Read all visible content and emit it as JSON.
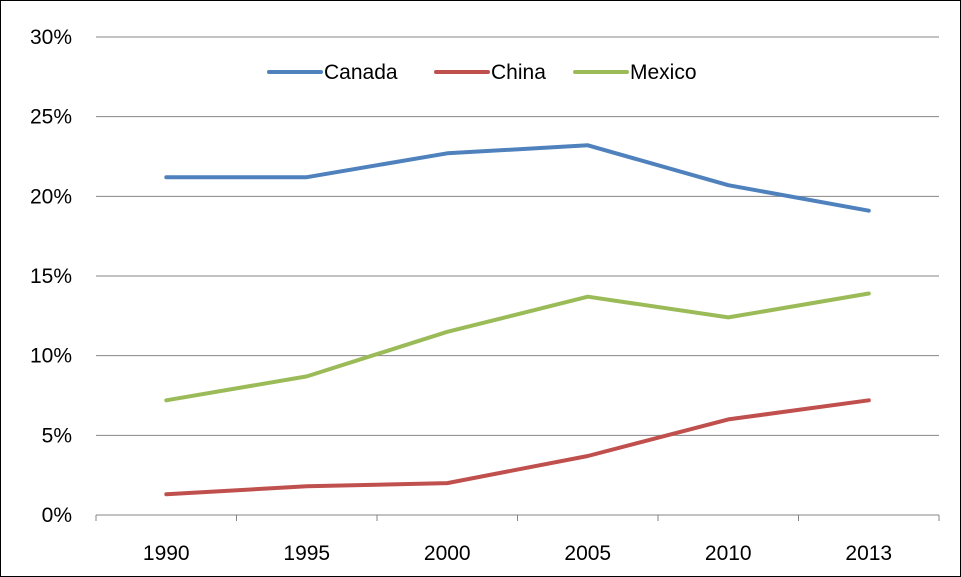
{
  "chart_data": {
    "type": "line",
    "title": "",
    "xlabel": "",
    "ylabel": "",
    "categories": [
      "1990",
      "1995",
      "2000",
      "2005",
      "2010",
      "2013"
    ],
    "y_ticks": [
      "0%",
      "5%",
      "10%",
      "15%",
      "20%",
      "25%",
      "30%"
    ],
    "ylim": [
      0,
      30
    ],
    "y_unit": "%",
    "grid": "horizontal",
    "legend_position": "top-center",
    "series": [
      {
        "name": "Canada",
        "color": "#4f81bd",
        "values": [
          21.2,
          21.2,
          22.7,
          23.2,
          20.7,
          19.1
        ]
      },
      {
        "name": "China",
        "color": "#c0504d",
        "values": [
          1.3,
          1.8,
          2.0,
          3.7,
          6.0,
          7.2
        ]
      },
      {
        "name": "Mexico",
        "color": "#9bbb59",
        "values": [
          7.2,
          8.7,
          11.5,
          13.7,
          12.4,
          13.9
        ]
      }
    ]
  }
}
